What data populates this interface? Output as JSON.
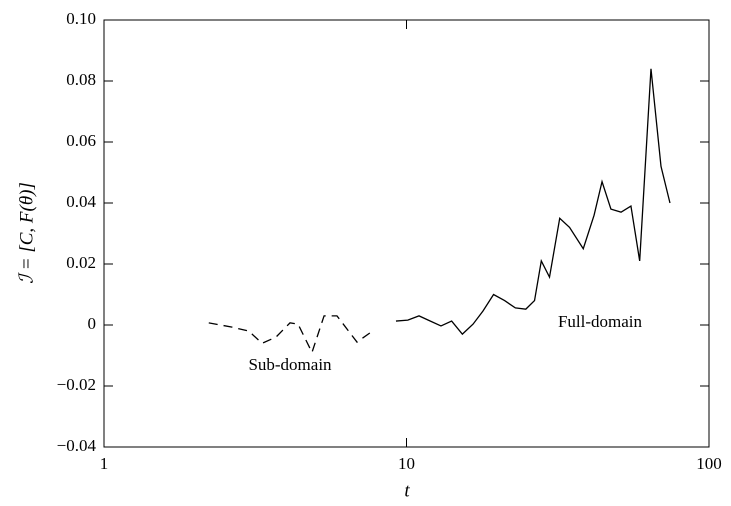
{
  "chart_data": {
    "type": "line",
    "xlabel": "t",
    "ylabel": "ℐ = [C, F(θ)]",
    "xscale": "log",
    "xlim": [
      1,
      100
    ],
    "xticks": [
      1,
      10,
      100
    ],
    "ylim": [
      -0.04,
      0.1
    ],
    "yticks": [
      {
        "value": -0.04,
        "label": "−0.04"
      },
      {
        "value": -0.02,
        "label": "−0.02"
      },
      0,
      0.02,
      0.04,
      0.06,
      0.08,
      {
        "value": 0.1,
        "label": "0.10"
      }
    ],
    "series": [
      {
        "name": "Sub-domain",
        "color": "#000000",
        "dash": true,
        "x": [
          2.22,
          2.65,
          3.01,
          3.33,
          3.7,
          4.12,
          4.38,
          4.87,
          5.34,
          5.89,
          6.86,
          7.57
        ],
        "values": [
          0.0007,
          -0.0007,
          -0.002,
          -0.006,
          -0.004,
          0.0007,
          0.0003,
          -0.009,
          0.003,
          0.003,
          -0.0056,
          -0.0026
        ]
      },
      {
        "name": "Full-domain",
        "color": "#000000",
        "dash": false,
        "x": [
          9.23,
          10.1,
          11.0,
          11.8,
          13.0,
          14.1,
          15.3,
          16.6,
          17.9,
          19.4,
          21.1,
          22.9,
          24.8,
          26.5,
          27.9,
          29.7,
          32.1,
          34.6,
          38.4,
          41.7,
          44.3,
          47.4,
          51.2,
          55.2,
          59.0,
          64.3,
          69.4,
          74.3
        ],
        "values": [
          0.0013,
          0.0016,
          0.003,
          0.0016,
          -0.0003,
          0.0013,
          -0.003,
          0.0003,
          0.0046,
          0.01,
          0.008,
          0.0056,
          0.0052,
          0.008,
          0.021,
          0.0157,
          0.035,
          0.032,
          0.025,
          0.036,
          0.047,
          0.038,
          0.037,
          0.039,
          0.021,
          0.084,
          0.052,
          0.04
        ]
      }
    ]
  }
}
